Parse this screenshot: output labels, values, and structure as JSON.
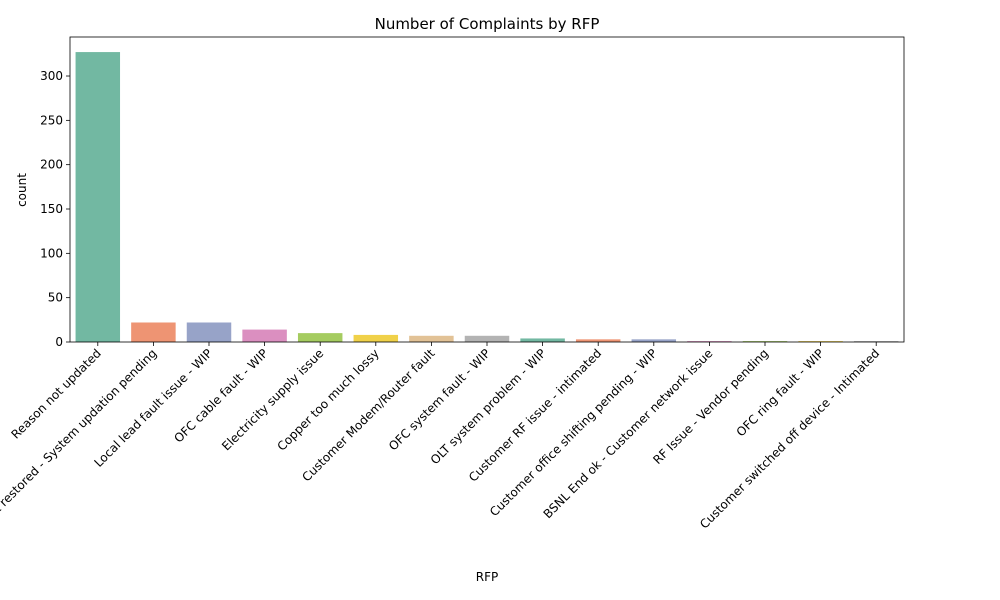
{
  "chart_data": {
    "type": "bar",
    "title": "Number of Complaints by RFP",
    "xlabel": "RFP",
    "ylabel": "count",
    "ylim": [
      0,
      344
    ],
    "yticks": [
      0,
      50,
      100,
      150,
      200,
      250,
      300
    ],
    "grid": false,
    "legend": "none",
    "categories": [
      "Reason not updated",
      "Fault restored - System updation pending",
      "Local lead fault issue - WIP",
      "OFC cable fault - WIP",
      "Electricity supply issue",
      "Copper too much lossy",
      "Customer Modem/Router fault",
      "OFC system fault - WIP",
      "OLT system problem  - WIP",
      "Customer RF issue - intimated",
      "Customer office shifting pending - WIP",
      "BSNL End ok - Customer network issue",
      "RF Issue - Vendor pending",
      "OFC ring fault - WIP",
      "Customer switched off device - Intimated"
    ],
    "values": [
      327,
      22,
      22,
      14,
      10,
      8,
      7,
      7,
      4,
      3,
      3,
      1,
      1,
      1,
      1
    ],
    "colors": [
      "#72b8a2",
      "#ee9473",
      "#97a3c8",
      "#db8fc0",
      "#a5cc60",
      "#f0d149",
      "#e2c296",
      "#b3b3b3",
      "#72b8a2",
      "#ee9473",
      "#97a3c8",
      "#db8fc0",
      "#a5cc60",
      "#f0d149",
      "#b3b3b3"
    ]
  }
}
